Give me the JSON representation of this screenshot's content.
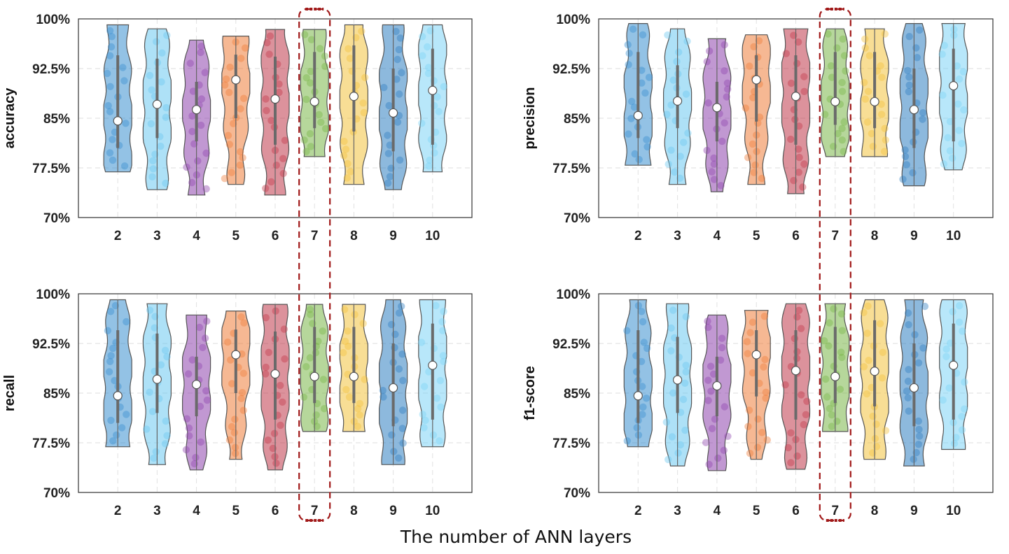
{
  "chart_data": {
    "type": "violin",
    "xlabel": "The number of ANN layers",
    "categories": [
      "2",
      "3",
      "4",
      "5",
      "6",
      "7",
      "8",
      "9",
      "10"
    ],
    "highlighted_category": "7",
    "ylim": [
      70,
      100
    ],
    "yticks": [
      70,
      77.5,
      85,
      92.5,
      100
    ],
    "ytick_labels": [
      "70%",
      "77.5%",
      "85%",
      "92.5%",
      "100%"
    ],
    "grid": true,
    "colors": [
      "#3a8fd0",
      "#6cc8f0",
      "#8e44ad",
      "#ee7d3a",
      "#c0394b",
      "#7ab648",
      "#f2c23e",
      "#2f7fc1",
      "#7dd3f5"
    ],
    "panels": [
      {
        "ylabel": "accuracy",
        "series": [
          {
            "category": "2",
            "min": 76.9,
            "max": 99.1,
            "median": 84.6,
            "q1": 80.5,
            "q3": 94.5
          },
          {
            "category": "3",
            "min": 74.2,
            "max": 98.5,
            "median": 87.1,
            "q1": 82.0,
            "q3": 94.0
          },
          {
            "category": "4",
            "min": 73.4,
            "max": 96.8,
            "median": 86.3,
            "q1": 81.5,
            "q3": 90.5
          },
          {
            "category": "5",
            "min": 75.0,
            "max": 97.4,
            "median": 90.8,
            "q1": 85.0,
            "q3": 94.6
          },
          {
            "category": "6",
            "min": 73.4,
            "max": 98.4,
            "median": 87.9,
            "q1": 81.0,
            "q3": 94.3
          },
          {
            "category": "7",
            "min": 79.2,
            "max": 98.4,
            "median": 87.5,
            "q1": 83.5,
            "q3": 95.0
          },
          {
            "category": "8",
            "min": 75.0,
            "max": 99.1,
            "median": 88.3,
            "q1": 83.0,
            "q3": 96.0
          },
          {
            "category": "9",
            "min": 74.2,
            "max": 99.1,
            "median": 85.8,
            "q1": 80.0,
            "q3": 92.5
          },
          {
            "category": "10",
            "min": 76.9,
            "max": 99.1,
            "median": 89.2,
            "q1": 81.0,
            "q3": 95.5
          }
        ]
      },
      {
        "ylabel": "precision",
        "series": [
          {
            "category": "2",
            "min": 77.9,
            "max": 99.3,
            "median": 85.4,
            "q1": 82.0,
            "q3": 95.0
          },
          {
            "category": "3",
            "min": 75.0,
            "max": 98.5,
            "median": 87.6,
            "q1": 83.5,
            "q3": 93.0
          },
          {
            "category": "4",
            "min": 73.9,
            "max": 97.0,
            "median": 86.6,
            "q1": 81.5,
            "q3": 90.5
          },
          {
            "category": "5",
            "min": 75.0,
            "max": 97.6,
            "median": 90.8,
            "q1": 84.5,
            "q3": 94.5
          },
          {
            "category": "6",
            "min": 73.6,
            "max": 98.5,
            "median": 88.3,
            "q1": 81.0,
            "q3": 94.5
          },
          {
            "category": "7",
            "min": 79.2,
            "max": 98.5,
            "median": 87.5,
            "q1": 84.0,
            "q3": 95.0
          },
          {
            "category": "8",
            "min": 79.2,
            "max": 98.5,
            "median": 87.5,
            "q1": 83.5,
            "q3": 95.0
          },
          {
            "category": "9",
            "min": 74.8,
            "max": 99.3,
            "median": 86.3,
            "q1": 80.5,
            "q3": 92.5
          },
          {
            "category": "10",
            "min": 77.2,
            "max": 99.3,
            "median": 89.9,
            "q1": 81.5,
            "q3": 95.5
          }
        ]
      },
      {
        "ylabel": "recall",
        "series": [
          {
            "category": "2",
            "min": 76.9,
            "max": 99.1,
            "median": 84.6,
            "q1": 80.5,
            "q3": 94.5
          },
          {
            "category": "3",
            "min": 74.2,
            "max": 98.5,
            "median": 87.1,
            "q1": 82.0,
            "q3": 94.0
          },
          {
            "category": "4",
            "min": 73.4,
            "max": 96.8,
            "median": 86.3,
            "q1": 81.5,
            "q3": 90.5
          },
          {
            "category": "5",
            "min": 75.0,
            "max": 97.4,
            "median": 90.8,
            "q1": 85.0,
            "q3": 94.6
          },
          {
            "category": "6",
            "min": 73.4,
            "max": 98.4,
            "median": 87.9,
            "q1": 81.0,
            "q3": 94.3
          },
          {
            "category": "7",
            "min": 79.2,
            "max": 98.4,
            "median": 87.5,
            "q1": 83.5,
            "q3": 95.0
          },
          {
            "category": "8",
            "min": 79.2,
            "max": 98.4,
            "median": 87.5,
            "q1": 83.5,
            "q3": 95.0
          },
          {
            "category": "9",
            "min": 74.2,
            "max": 99.1,
            "median": 85.8,
            "q1": 80.0,
            "q3": 92.5
          },
          {
            "category": "10",
            "min": 76.9,
            "max": 99.1,
            "median": 89.2,
            "q1": 81.0,
            "q3": 95.5
          }
        ]
      },
      {
        "ylabel": "f1-score",
        "series": [
          {
            "category": "2",
            "min": 76.9,
            "max": 99.1,
            "median": 84.6,
            "q1": 80.5,
            "q3": 94.5
          },
          {
            "category": "3",
            "min": 74.0,
            "max": 98.5,
            "median": 87.0,
            "q1": 82.0,
            "q3": 93.5
          },
          {
            "category": "4",
            "min": 73.3,
            "max": 96.8,
            "median": 86.1,
            "q1": 81.5,
            "q3": 90.5
          },
          {
            "category": "5",
            "min": 75.0,
            "max": 97.5,
            "median": 90.8,
            "q1": 84.5,
            "q3": 94.5
          },
          {
            "category": "6",
            "min": 73.5,
            "max": 98.5,
            "median": 88.4,
            "q1": 81.0,
            "q3": 94.5
          },
          {
            "category": "7",
            "min": 79.2,
            "max": 98.5,
            "median": 87.5,
            "q1": 83.5,
            "q3": 95.0
          },
          {
            "category": "8",
            "min": 75.0,
            "max": 99.1,
            "median": 88.3,
            "q1": 83.0,
            "q3": 96.0
          },
          {
            "category": "9",
            "min": 74.0,
            "max": 99.1,
            "median": 85.8,
            "q1": 80.0,
            "q3": 92.5
          },
          {
            "category": "10",
            "min": 76.5,
            "max": 99.1,
            "median": 89.2,
            "q1": 81.0,
            "q3": 95.5
          }
        ]
      }
    ]
  }
}
